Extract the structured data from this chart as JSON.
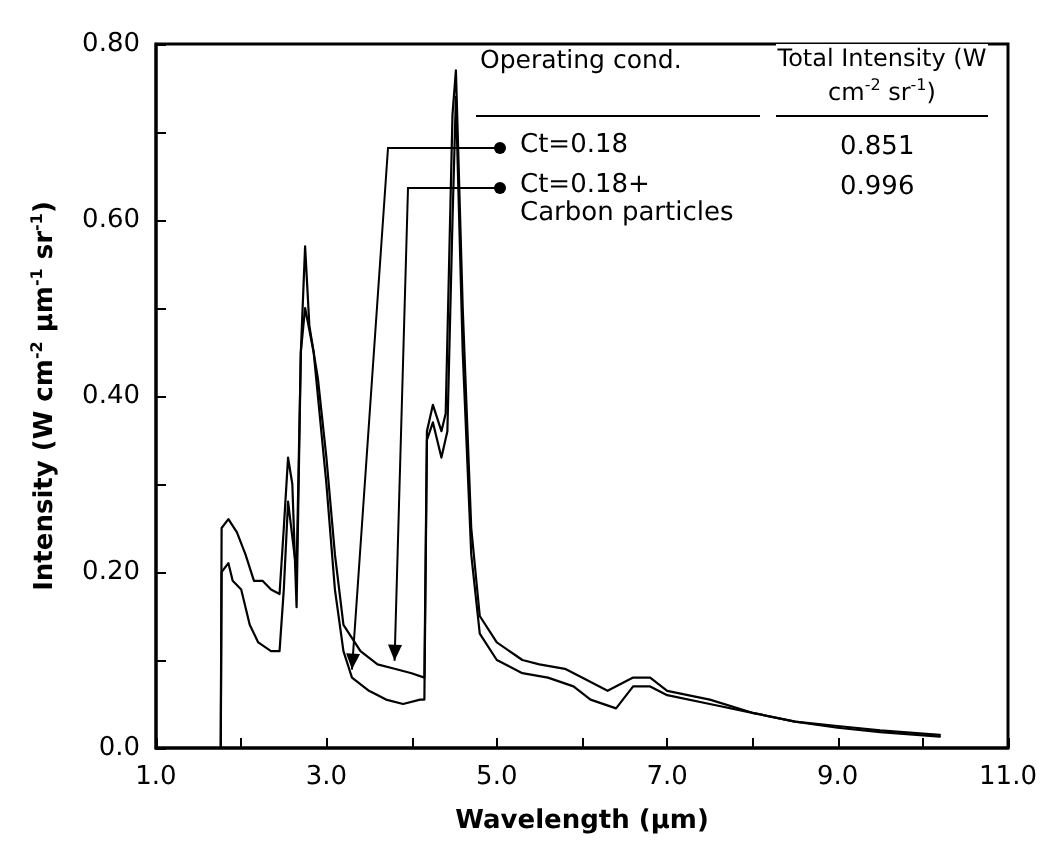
{
  "chart_data": {
    "type": "line",
    "xlabel": "Wavelength (μm)",
    "ylabel": "Intensity (W cm$^{-2}$ μm$^{-1}$ sr$^{-1}$)",
    "annotations": [
      "Operating cond.",
      "Total Intensity (W cm$^{-2}$ sr$^{-1}$)",
      "0.851",
      "0.996"
    ],
    "xlim": [
      1.0,
      11.0
    ],
    "xticks": [
      {
        "value": 1,
        "label": "1.0"
      },
      {
        "value": 2,
        "label": null
      },
      {
        "value": 3,
        "label": "3.0"
      },
      {
        "value": 4,
        "label": null
      },
      {
        "value": 5,
        "label": "5.0"
      },
      {
        "value": 6,
        "label": null
      },
      {
        "value": 7,
        "label": "7.0"
      },
      {
        "value": 8,
        "label": null
      },
      {
        "value": 9,
        "label": "9.0"
      },
      {
        "value": 10,
        "label": null
      },
      {
        "value": 11,
        "label": "11.0"
      }
    ],
    "ylim": [
      0,
      0.8
    ],
    "yticks": [
      {
        "value": 0,
        "label": "0.0"
      },
      {
        "value": 0.1,
        "label": null
      },
      {
        "value": 0.2,
        "label": "0.20"
      },
      {
        "value": 0.3,
        "label": null
      },
      {
        "value": 0.4,
        "label": "0.40"
      },
      {
        "value": 0.5,
        "label": null
      },
      {
        "value": 0.6,
        "label": "0.60"
      },
      {
        "value": 0.7,
        "label": null
      },
      {
        "value": 0.8,
        "label": "0.80"
      }
    ],
    "legend": "top right",
    "marker": "none",
    "line_style": "solid",
    "series": [
      {
        "name": "Ct=0.18",
        "color": "#000000",
        "x": [
          1.76,
          1.77,
          1.85,
          1.9,
          2.0,
          2.1,
          2.2,
          2.35,
          2.45,
          2.5,
          2.55,
          2.6,
          2.65,
          2.7,
          2.75,
          2.85,
          3.0,
          3.1,
          3.2,
          3.3,
          3.5,
          3.7,
          3.9,
          4.1,
          4.15,
          4.18,
          4.25,
          4.35,
          4.42,
          4.48,
          4.52,
          4.6,
          4.7,
          4.8,
          5.0,
          5.3,
          5.6,
          5.9,
          6.1,
          6.4,
          6.6,
          6.8,
          7.0,
          7.5,
          8.0,
          8.5,
          9.0,
          9.5,
          10.2
        ],
        "values": [
          0,
          0.2,
          0.21,
          0.19,
          0.18,
          0.14,
          0.12,
          0.11,
          0.11,
          0.18,
          0.28,
          0.24,
          0.2,
          0.45,
          0.5,
          0.45,
          0.3,
          0.18,
          0.11,
          0.08,
          0.065,
          0.055,
          0.05,
          0.055,
          0.055,
          0.35,
          0.37,
          0.33,
          0.36,
          0.6,
          0.74,
          0.45,
          0.22,
          0.13,
          0.1,
          0.085,
          0.08,
          0.07,
          0.055,
          0.045,
          0.07,
          0.07,
          0.06,
          0.05,
          0.04,
          0.03,
          0.023,
          0.018,
          0.013
        ]
      },
      {
        "name": "Ct=0.18+ Carbon particles",
        "color": "#000000",
        "x": [
          1.76,
          1.77,
          1.85,
          1.95,
          2.05,
          2.15,
          2.25,
          2.35,
          2.45,
          2.5,
          2.55,
          2.6,
          2.65,
          2.7,
          2.75,
          2.8,
          2.9,
          3.0,
          3.1,
          3.2,
          3.4,
          3.6,
          3.8,
          4.0,
          4.15,
          4.18,
          4.25,
          4.35,
          4.4,
          4.48,
          4.52,
          4.6,
          4.7,
          4.8,
          5.0,
          5.3,
          5.5,
          5.8,
          6.0,
          6.3,
          6.6,
          6.8,
          7.0,
          7.5,
          8.0,
          8.5,
          9.0,
          9.5,
          10.2
        ],
        "values": [
          0,
          0.25,
          0.26,
          0.245,
          0.22,
          0.19,
          0.19,
          0.18,
          0.175,
          0.25,
          0.33,
          0.3,
          0.16,
          0.45,
          0.57,
          0.48,
          0.42,
          0.33,
          0.22,
          0.14,
          0.11,
          0.095,
          0.09,
          0.085,
          0.08,
          0.36,
          0.39,
          0.36,
          0.38,
          0.72,
          0.77,
          0.5,
          0.25,
          0.15,
          0.12,
          0.1,
          0.095,
          0.09,
          0.08,
          0.065,
          0.08,
          0.08,
          0.065,
          0.055,
          0.04,
          0.03,
          0.025,
          0.02,
          0.015
        ]
      }
    ]
  }
}
